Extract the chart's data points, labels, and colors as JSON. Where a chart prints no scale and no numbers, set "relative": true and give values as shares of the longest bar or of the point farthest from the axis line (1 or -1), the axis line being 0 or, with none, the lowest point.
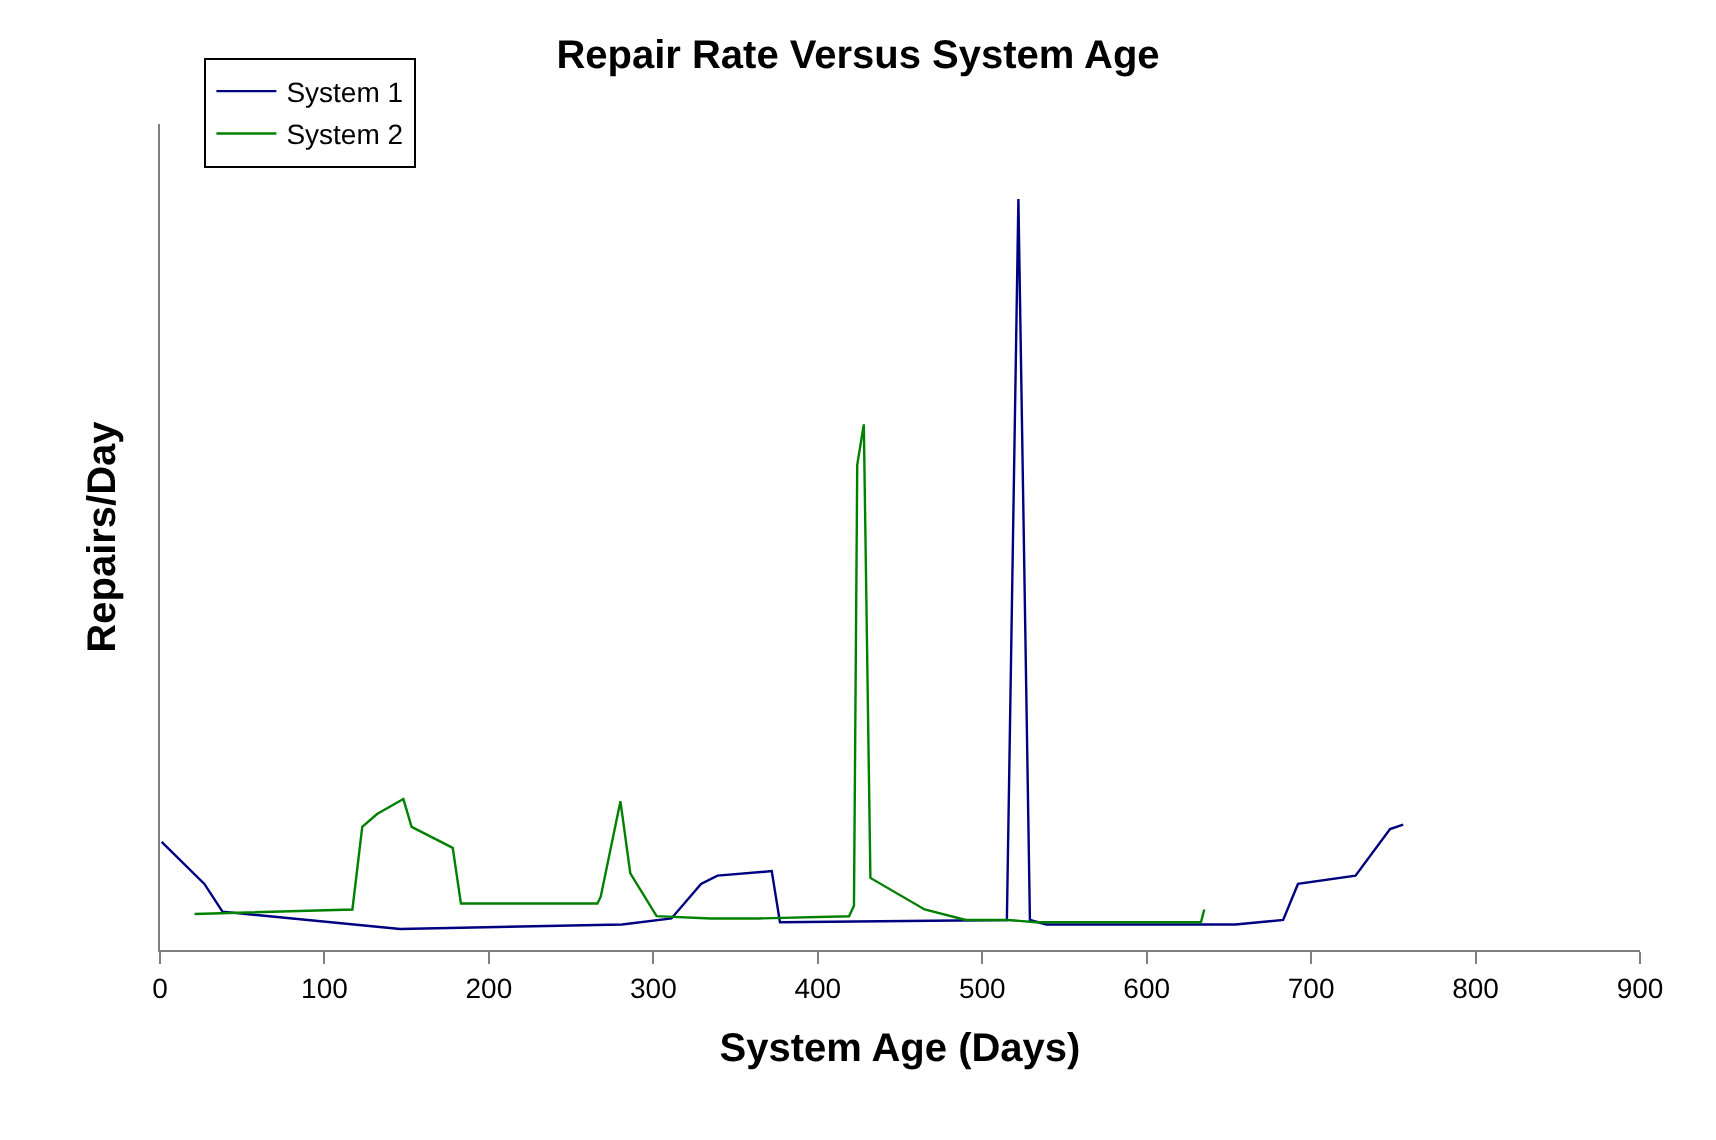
{
  "chart_data": {
    "type": "line",
    "title": "Repair Rate Versus System Age",
    "xlabel": "System Age (Days)",
    "ylabel": "Repairs/Day",
    "relative": true,
    "xlim": [
      0,
      900
    ],
    "xticks": [
      0,
      100,
      200,
      300,
      400,
      500,
      600,
      700,
      800,
      900
    ],
    "legend": "top left",
    "marker": "none",
    "line_style": "solid",
    "series": [
      {
        "name": "System 1",
        "color": "#000080",
        "x": [
          1,
          27,
          38,
          146,
          281,
          311,
          329,
          339,
          372,
          377,
          515,
          522,
          529,
          539,
          654,
          683,
          692,
          727,
          748,
          756
        ],
        "values": [
          0.144,
          0.088,
          0.051,
          0.028,
          0.034,
          0.042,
          0.088,
          0.099,
          0.105,
          0.037,
          0.04,
          1.0,
          0.04,
          0.034,
          0.034,
          0.04,
          0.088,
          0.099,
          0.161,
          0.167
        ]
      },
      {
        "name": "System 2",
        "color": "#008000",
        "x": [
          21,
          117,
          123,
          132,
          148,
          153,
          178,
          183,
          266,
          268,
          280,
          286,
          302,
          335,
          364,
          419,
          422,
          424,
          428,
          432,
          465,
          490,
          515,
          533,
          633,
          635
        ],
        "values": [
          0.048,
          0.054,
          0.164,
          0.181,
          0.201,
          0.164,
          0.136,
          0.062,
          0.062,
          0.071,
          0.198,
          0.102,
          0.045,
          0.042,
          0.042,
          0.045,
          0.059,
          0.646,
          0.7,
          0.096,
          0.054,
          0.04,
          0.04,
          0.037,
          0.037,
          0.054
        ]
      }
    ]
  }
}
